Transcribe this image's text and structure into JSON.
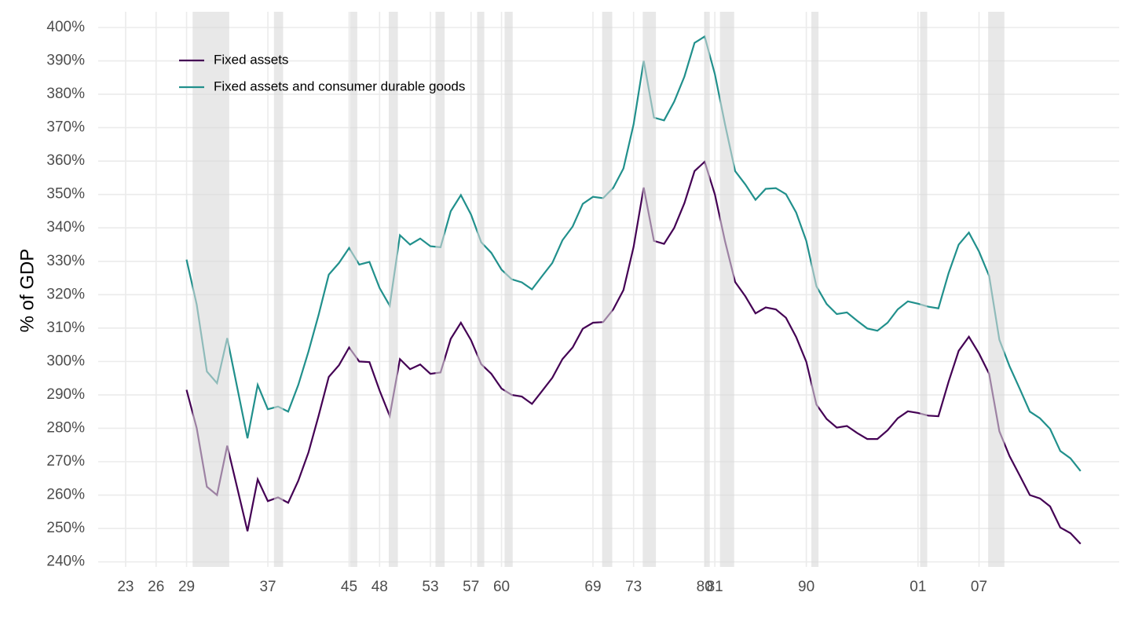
{
  "chart_data": {
    "type": "line",
    "y_label": "% of GDP",
    "x": [
      1929,
      1930,
      1931,
      1932,
      1933,
      1934,
      1935,
      1936,
      1937,
      1938,
      1939,
      1940,
      1941,
      1942,
      1943,
      1944,
      1945,
      1946,
      1947,
      1948,
      1949,
      1950,
      1951,
      1952,
      1953,
      1954,
      1955,
      1956,
      1957,
      1958,
      1959,
      1960,
      1961,
      1962,
      1963,
      1964,
      1965,
      1966,
      1967,
      1968,
      1969,
      1970,
      1971,
      1972,
      1973,
      1974,
      1975,
      1976,
      1977,
      1978,
      1979,
      1980,
      1981,
      1982,
      1983,
      1984,
      1985,
      1986,
      1987,
      1988,
      1989,
      1990,
      1991,
      1992,
      1993,
      1994,
      1995,
      1996,
      1997,
      1998,
      1999,
      2000,
      2001,
      2002,
      2003,
      2004,
      2005,
      2006,
      2007,
      2008,
      2009,
      2010,
      2011,
      2012,
      2013,
      2014,
      2015,
      2016,
      2017
    ],
    "series": [
      {
        "name": "Fixed assets",
        "color": "#440154",
        "values": [
          291.5,
          280,
          262.5,
          260,
          274.8,
          262,
          249.2,
          264.7,
          258.2,
          259.3,
          257.7,
          264.3,
          272.8,
          283.8,
          295.4,
          298.9,
          304.2,
          300,
          299.8,
          291.3,
          283.7,
          300.7,
          297.7,
          299.1,
          296.3,
          296.7,
          306.8,
          311.6,
          306.4,
          299.2,
          296.3,
          291.9,
          290,
          289.5,
          287.3,
          291.2,
          295.1,
          300.7,
          304.2,
          309.8,
          311.6,
          311.8,
          315.6,
          321.4,
          334.3,
          352.1,
          336.1,
          335.2,
          340,
          347.4,
          357,
          359.8,
          350,
          336,
          323.8,
          319.5,
          314.4,
          316.2,
          315.6,
          313.1,
          307.3,
          299.9,
          287.1,
          282.8,
          280.2,
          280.7,
          278.6,
          276.8,
          276.8,
          279.4,
          283,
          285.1,
          284.6,
          283.8,
          283.6,
          293.9,
          303.2,
          307.4,
          302.4,
          296.3,
          279.1,
          271.7,
          265.9,
          260,
          259,
          256.6,
          250.3,
          248.6,
          245.4
        ]
      },
      {
        "name": "Fixed assets and consumer durable goods",
        "color": "#21908c",
        "values": [
          330.5,
          317,
          297,
          293.5,
          307,
          292,
          277,
          293,
          285.7,
          286.5,
          285,
          293,
          303,
          314,
          326,
          329.5,
          334,
          329,
          329.8,
          322,
          316.7,
          337.8,
          335,
          336.8,
          334.5,
          334.2,
          345,
          349.8,
          344,
          335.7,
          332.5,
          327.5,
          324.6,
          323.7,
          321.6,
          325.6,
          329.5,
          336.3,
          340.4,
          347.2,
          349.3,
          348.9,
          352,
          357.8,
          371,
          390,
          373,
          372.2,
          377.8,
          385.3,
          395.4,
          397.3,
          386,
          371,
          357,
          353,
          348.4,
          351.7,
          351.9,
          350.1,
          344.6,
          336.1,
          322.5,
          317.2,
          314.2,
          314.7,
          312.2,
          309.9,
          309.2,
          311.6,
          315.6,
          318,
          317.3,
          316.4,
          315.9,
          326.4,
          335,
          338.6,
          332.9,
          325.6,
          306.5,
          298.6,
          291.9,
          285,
          283,
          279.8,
          273.2,
          271,
          267.2
        ]
      }
    ],
    "recessions": [
      [
        1929.6,
        1933.2
      ],
      [
        1937.6,
        1938.5
      ],
      [
        1945.1,
        1945.8
      ],
      [
        1948.9,
        1949.8
      ],
      [
        1953.5,
        1954.4
      ],
      [
        1957.6,
        1958.3
      ],
      [
        1960.3,
        1961.1
      ],
      [
        1969.9,
        1970.9
      ],
      [
        1973.9,
        1975.2
      ],
      [
        1980.0,
        1980.5
      ],
      [
        1981.5,
        1982.9
      ],
      [
        1990.5,
        1991.2
      ],
      [
        2001.2,
        2001.9
      ],
      [
        2007.9,
        2009.5
      ]
    ],
    "recession_color": "#d9d9d9",
    "xlim": [
      1920.3,
      2020.8
    ],
    "ylim": [
      238.5,
      404.7
    ],
    "xticks": [
      {
        "value": 1923,
        "label": "23"
      },
      {
        "value": 1926,
        "label": "26"
      },
      {
        "value": 1929,
        "label": "29"
      },
      {
        "value": 1937,
        "label": "37"
      },
      {
        "value": 1945,
        "label": "45"
      },
      {
        "value": 1948,
        "label": "48"
      },
      {
        "value": 1953,
        "label": "53"
      },
      {
        "value": 1957,
        "label": "57"
      },
      {
        "value": 1960,
        "label": "60"
      },
      {
        "value": 1969,
        "label": "69"
      },
      {
        "value": 1973,
        "label": "73"
      },
      {
        "value": 1980,
        "label": "80"
      },
      {
        "value": 1981,
        "label": "81"
      },
      {
        "value": 1990,
        "label": "90"
      },
      {
        "value": 2001,
        "label": "01"
      },
      {
        "value": 2007,
        "label": "07"
      }
    ],
    "yticks": [
      {
        "value": 240,
        "label": "240%"
      },
      {
        "value": 250,
        "label": "250%"
      },
      {
        "value": 260,
        "label": "260%"
      },
      {
        "value": 270,
        "label": "270%"
      },
      {
        "value": 280,
        "label": "280%"
      },
      {
        "value": 290,
        "label": "290%"
      },
      {
        "value": 300,
        "label": "300%"
      },
      {
        "value": 310,
        "label": "310%"
      },
      {
        "value": 320,
        "label": "320%"
      },
      {
        "value": 330,
        "label": "330%"
      },
      {
        "value": 340,
        "label": "340%"
      },
      {
        "value": 350,
        "label": "350%"
      },
      {
        "value": 360,
        "label": "360%"
      },
      {
        "value": 370,
        "label": "370%"
      },
      {
        "value": 380,
        "label": "380%"
      },
      {
        "value": 390,
        "label": "390%"
      },
      {
        "value": 400,
        "label": "400%"
      }
    ],
    "grid": true,
    "legend": "top-left"
  }
}
